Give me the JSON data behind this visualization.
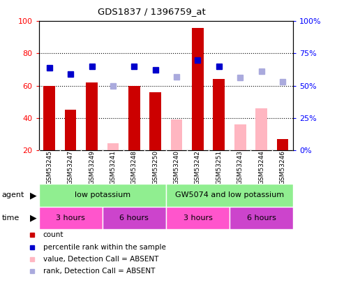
{
  "title": "GDS1837 / 1396759_at",
  "samples": [
    "GSM53245",
    "GSM53247",
    "GSM53249",
    "GSM53241",
    "GSM53248",
    "GSM53250",
    "GSM53240",
    "GSM53242",
    "GSM53251",
    "GSM53243",
    "GSM53244",
    "GSM53246"
  ],
  "count_values": [
    60,
    45,
    62,
    null,
    60,
    56,
    null,
    96,
    64,
    null,
    null,
    27
  ],
  "rank_values": [
    64,
    59,
    65,
    null,
    65,
    62,
    null,
    70,
    65,
    null,
    null,
    null
  ],
  "absent_count_values": [
    null,
    null,
    null,
    24,
    null,
    null,
    39,
    null,
    null,
    36,
    46,
    null
  ],
  "absent_rank_values": [
    null,
    null,
    null,
    50,
    null,
    null,
    57,
    null,
    null,
    56,
    61,
    53
  ],
  "ylim_left": [
    20,
    100
  ],
  "ylim_right": [
    0,
    100
  ],
  "yticks_left": [
    20,
    40,
    60,
    80,
    100
  ],
  "yticks_right": [
    0,
    25,
    50,
    75,
    100
  ],
  "ytick_labels_right": [
    "0%",
    "25%",
    "50%",
    "75%",
    "100%"
  ],
  "gridlines": [
    40,
    60,
    80
  ],
  "agent_groups": [
    {
      "label": "low potassium",
      "start": 0,
      "end": 5,
      "color": "#90EE90"
    },
    {
      "label": "GW5074 and low potassium",
      "start": 6,
      "end": 11,
      "color": "#90EE90"
    }
  ],
  "time_groups": [
    {
      "label": "3 hours",
      "start": 0,
      "end": 2,
      "color": "#FF55CC"
    },
    {
      "label": "6 hours",
      "start": 3,
      "end": 5,
      "color": "#CC44DD"
    },
    {
      "label": "3 hours",
      "start": 6,
      "end": 8,
      "color": "#FF55CC"
    },
    {
      "label": "6 hours",
      "start": 9,
      "end": 11,
      "color": "#CC44DD"
    }
  ],
  "bar_color": "#CC0000",
  "rank_color": "#0000CC",
  "absent_count_color": "#FFB6C1",
  "absent_rank_color": "#AAAADD",
  "bar_width": 0.55,
  "marker_size": 6,
  "background_color": "#ffffff",
  "legend_items": [
    {
      "label": "count",
      "color": "#CC0000"
    },
    {
      "label": "percentile rank within the sample",
      "color": "#0000CC"
    },
    {
      "label": "value, Detection Call = ABSENT",
      "color": "#FFB6C1"
    },
    {
      "label": "rank, Detection Call = ABSENT",
      "color": "#AAAADD"
    }
  ]
}
